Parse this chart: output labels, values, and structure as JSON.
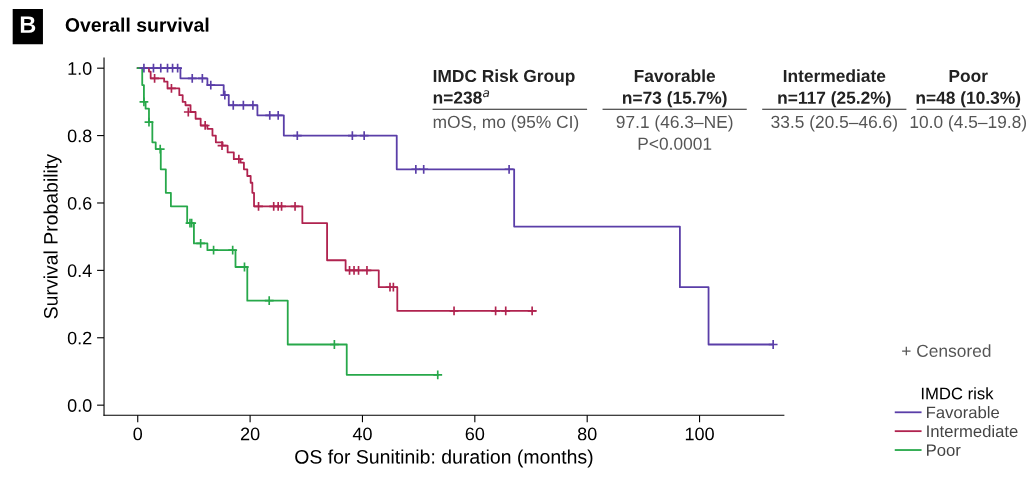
{
  "chart_data": {
    "type": "step",
    "title": "Overall survival",
    "xlabel": "OS for Sunitinib: duration (months)",
    "ylabel": "Survival Probability",
    "legend_title": "IMDC risk",
    "legend": "right",
    "grid": false,
    "line_style": "solid",
    "xlim": [
      -6,
      115
    ],
    "xticks": [
      0,
      20,
      40,
      60,
      80,
      100
    ],
    "ylim": [
      -0.03,
      1.03
    ],
    "yticks": [
      {
        "value": 0,
        "label": "0.0"
      },
      {
        "value": 0.2,
        "label": "0.2"
      },
      {
        "value": 0.4,
        "label": "0.4"
      },
      {
        "value": 0.6,
        "label": "0.6"
      },
      {
        "value": 0.8,
        "label": "0.8"
      },
      {
        "value": 1,
        "label": "1.0"
      }
    ],
    "series": [
      {
        "name": "Favorable",
        "color": "#5a3ea8",
        "x": [
          0,
          7.6,
          12.4,
          15.3,
          16.2,
          21.3,
          26,
          46.1,
          67,
          96.5,
          101.6,
          113.1
        ],
        "values": [
          1,
          0.97,
          0.95,
          0.92,
          0.89,
          0.86,
          0.8,
          0.7,
          0.53,
          0.35,
          0.18,
          0.18
        ]
      },
      {
        "name": "Intermediate",
        "color": "#b0234f",
        "x": [
          0,
          2,
          2.3,
          3.8,
          4.7,
          5.3,
          6.8,
          7.4,
          8,
          8.5,
          9.4,
          10.3,
          11.2,
          12.4,
          13.3,
          13.9,
          15.1,
          16,
          17.1,
          18.3,
          18.9,
          19.5,
          20.1,
          20.4,
          20.7,
          29.3,
          33.7,
          37,
          42.9,
          46.2,
          70.8
        ],
        "values": [
          1,
          0.99,
          0.97,
          0.97,
          0.96,
          0.94,
          0.94,
          0.92,
          0.9,
          0.89,
          0.87,
          0.85,
          0.83,
          0.82,
          0.8,
          0.78,
          0.77,
          0.75,
          0.73,
          0.72,
          0.7,
          0.68,
          0.66,
          0.63,
          0.59,
          0.54,
          0.43,
          0.4,
          0.35,
          0.28,
          0.28
        ]
      },
      {
        "name": "Poor",
        "color": "#27a84a",
        "x": [
          0,
          0.8,
          1.1,
          1.4,
          2,
          2.6,
          3.2,
          4.1,
          5,
          5.9,
          8.8,
          10,
          12.4,
          17.4,
          19.5,
          26.7,
          37.2,
          53.4
        ],
        "values": [
          1,
          0.95,
          0.9,
          0.88,
          0.84,
          0.78,
          0.76,
          0.7,
          0.63,
          0.59,
          0.54,
          0.48,
          0.46,
          0.41,
          0.31,
          0.18,
          0.09,
          0.09
        ]
      },
      {
        "type": "scatter",
        "marker": "cross",
        "color": "#5a3ea8",
        "x": [
          1.1,
          2.8,
          4.1,
          5.3,
          6.2,
          7.1,
          9.7,
          11.5,
          13,
          15.5,
          17,
          18.8,
          20.5,
          23.5,
          25,
          28.4,
          38.2,
          40.3,
          49.5,
          50.9,
          66.1,
          113.1
        ],
        "values": [
          1,
          1,
          1,
          1,
          1,
          1,
          0.97,
          0.97,
          0.95,
          0.92,
          0.89,
          0.89,
          0.89,
          0.86,
          0.86,
          0.8,
          0.8,
          0.8,
          0.7,
          0.7,
          0.7,
          0.18
        ]
      },
      {
        "type": "scatter",
        "marker": "cross",
        "color": "#b0234f",
        "x": [
          3,
          6,
          9,
          12,
          15,
          18,
          21.5,
          24.2,
          25,
          25.6,
          28,
          37.7,
          38.5,
          39.3,
          40.8,
          44.9,
          45.5,
          56.3,
          63.7,
          65.5,
          70.2
        ],
        "values": [
          0.97,
          0.94,
          0.87,
          0.83,
          0.77,
          0.73,
          0.59,
          0.59,
          0.59,
          0.59,
          0.59,
          0.4,
          0.4,
          0.4,
          0.4,
          0.35,
          0.35,
          0.28,
          0.28,
          0.28,
          0.28
        ]
      },
      {
        "type": "scatter",
        "marker": "cross",
        "color": "#27a84a",
        "x": [
          1.1,
          2,
          4,
          9.3,
          9.6,
          11.2,
          13.5,
          16.9,
          19,
          23.4,
          35,
          53.4
        ],
        "values": [
          0.9,
          0.84,
          0.76,
          0.54,
          0.54,
          0.48,
          0.46,
          0.46,
          0.41,
          0.31,
          0.18,
          0.09
        ]
      }
    ],
    "annotations": [
      "B",
      "IMDC Risk Group",
      "n=238$^{a}$",
      "mOS, mo (95% CI)",
      "Favorable",
      "n=73 (15.7%)",
      "97.1 (46.3–NE)",
      "Intermediate",
      "n=117 (25.2%)",
      "33.5 (20.5–46.6)",
      "Poor",
      "n=48 (10.3%)",
      "10.0 (4.5–19.8)",
      "P<0.0001",
      "+ Censored"
    ]
  }
}
